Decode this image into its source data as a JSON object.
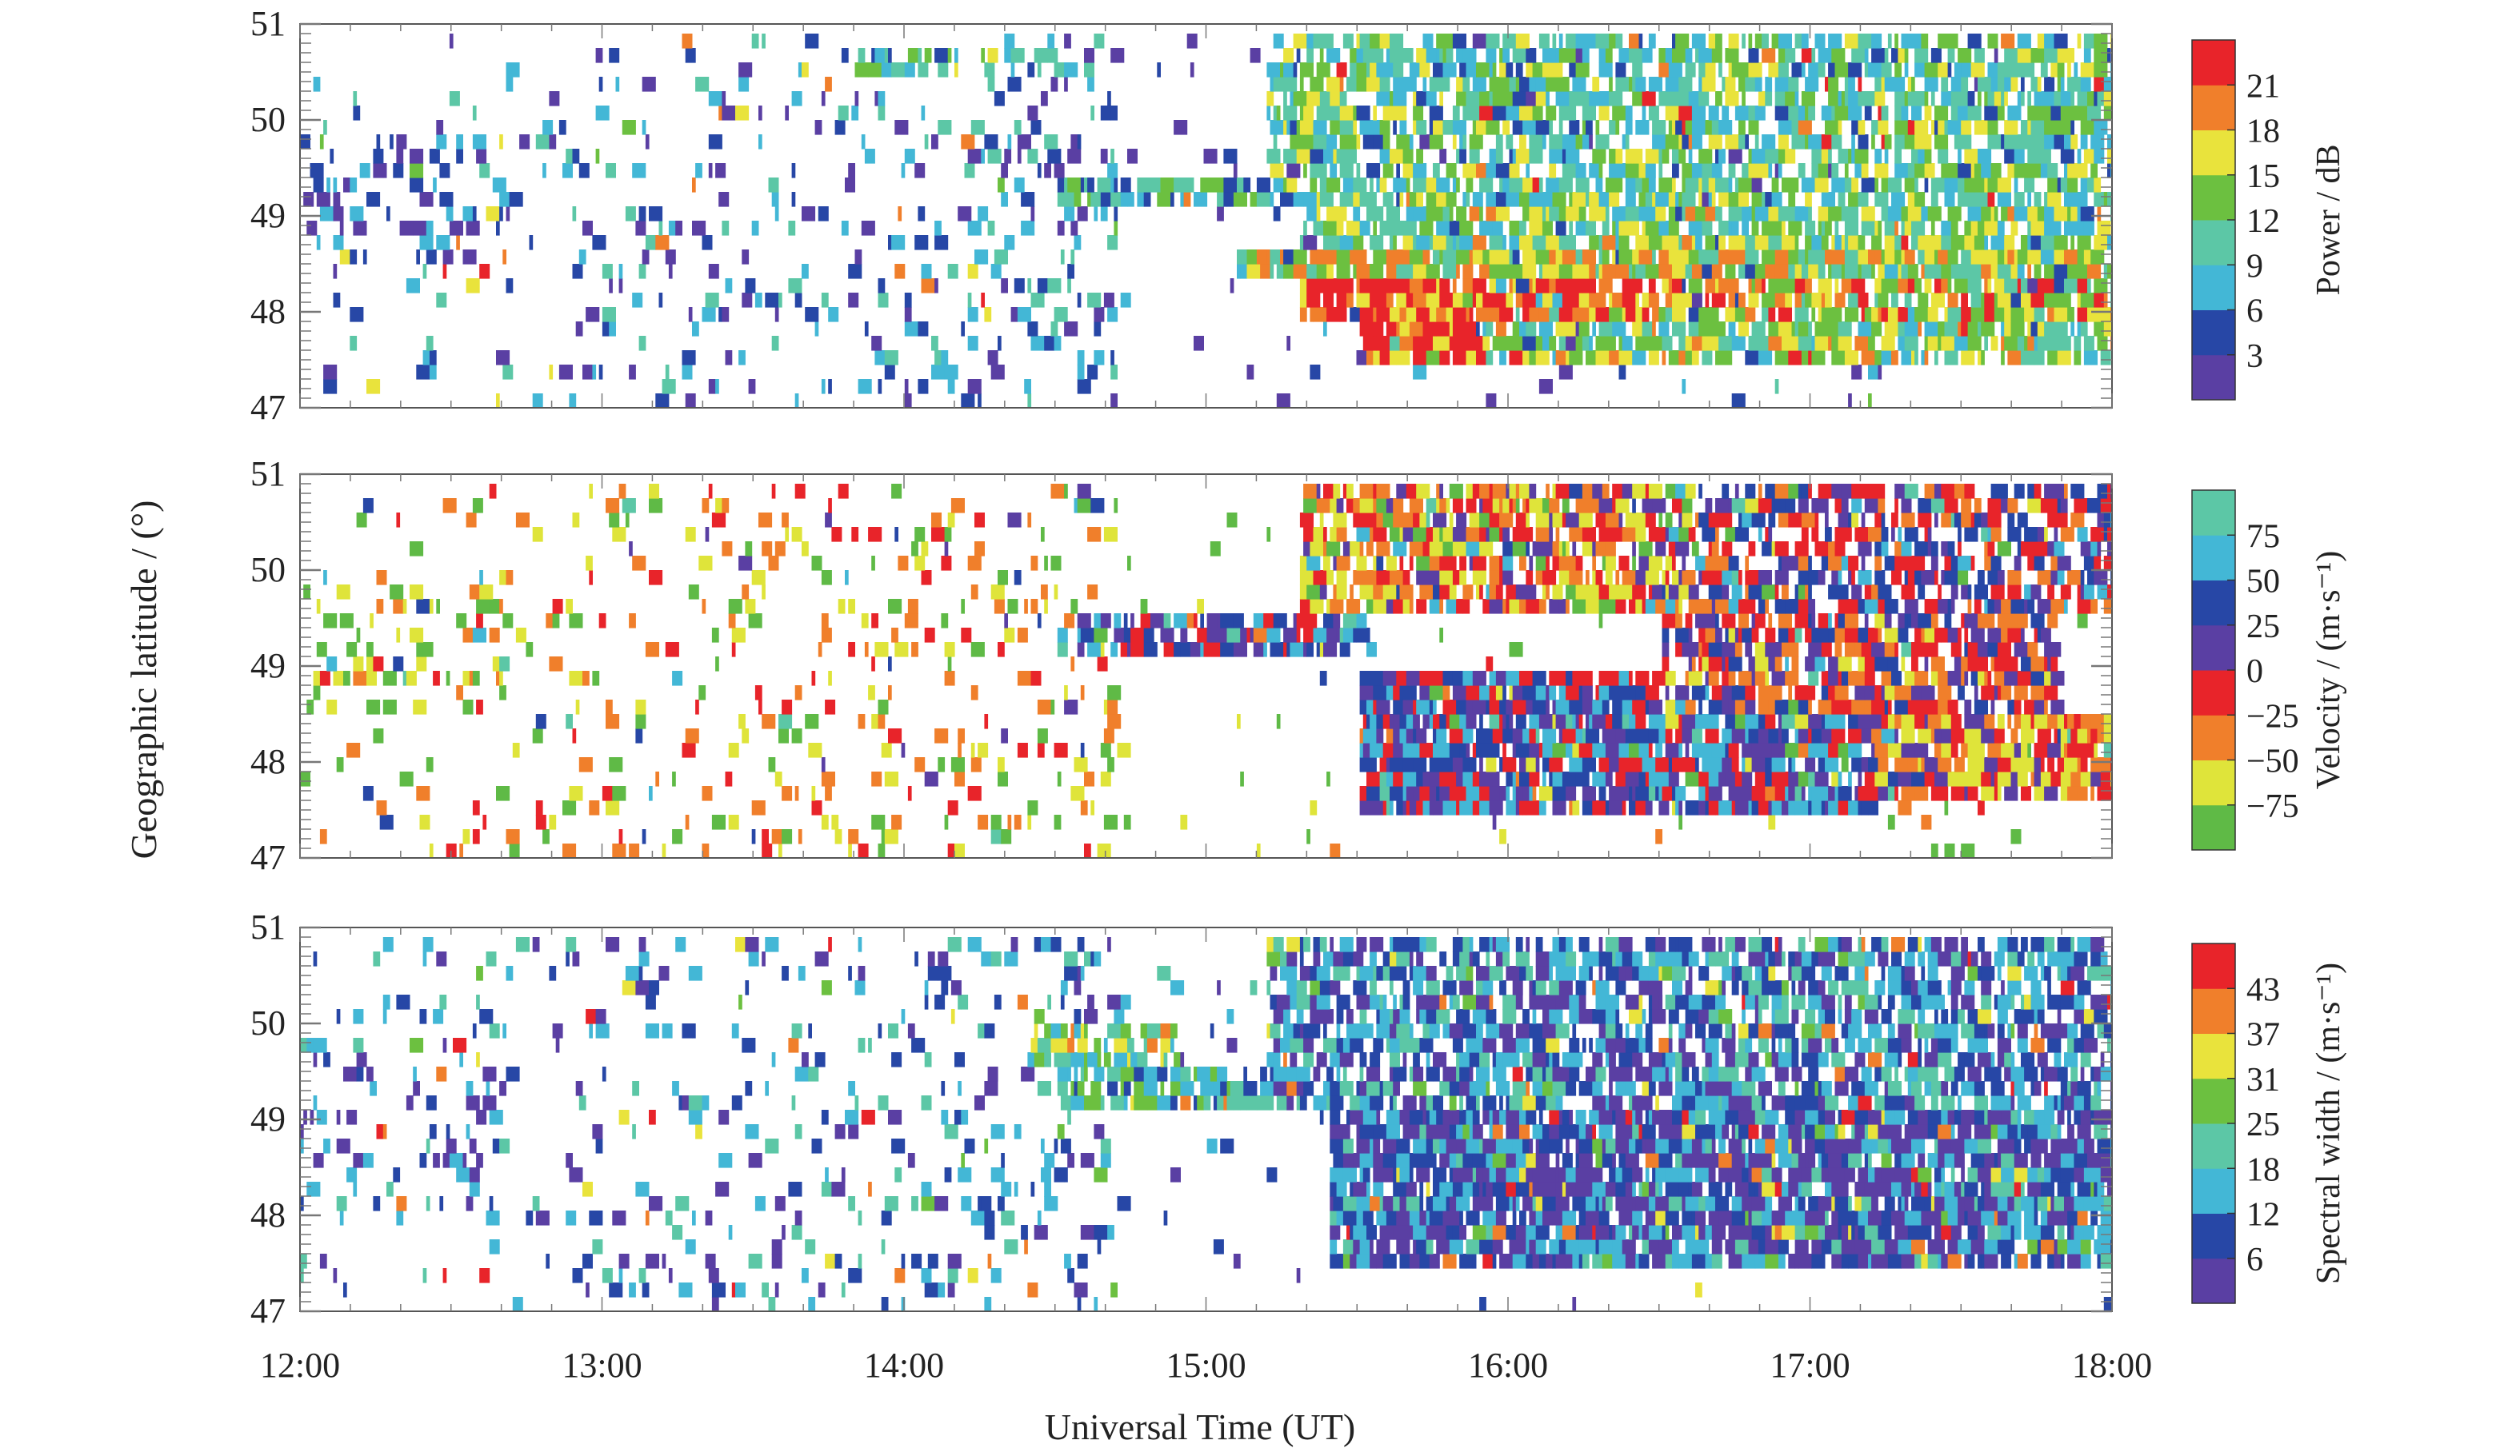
{
  "chart_data": [
    {
      "type": "heatmap",
      "panel": "power",
      "ylim": [
        47,
        51
      ],
      "yticks": [
        "47",
        "48",
        "49",
        "50",
        "51"
      ],
      "colorbar": {
        "label": "Power / dB",
        "ticks": [
          "3",
          "6",
          "9",
          "12",
          "15",
          "18",
          "21"
        ],
        "colors": [
          "#5a3fa3",
          "#2747a6",
          "#43b7d6",
          "#5cc7a6",
          "#6cc040",
          "#e9e33c",
          "#f07f2b",
          "#e8242a"
        ]
      },
      "bands": [
        {
          "lat": [
            50.85,
            51.0
          ],
          "t": [
            13.3,
            14.7
          ],
          "v": 0.4,
          "d": 0.25
        },
        {
          "lat": [
            50.5,
            50.7
          ],
          "t": [
            13.8,
            14.5
          ],
          "v": 0.45,
          "d": 0.3
        },
        {
          "lat": [
            49.1,
            49.4
          ],
          "t": [
            14.5,
            15.5
          ],
          "v": 0.35,
          "d": 0.6
        },
        {
          "lat": [
            48.3,
            48.6
          ],
          "t": [
            15.1,
            18.0
          ],
          "v": 0.65,
          "d": 0.85
        },
        {
          "lat": [
            47.9,
            48.3
          ],
          "t": [
            15.3,
            16.4
          ],
          "v": 0.95,
          "d": 0.85
        },
        {
          "lat": [
            47.9,
            48.3
          ],
          "t": [
            16.4,
            18.0
          ],
          "v": 0.75,
          "d": 0.7
        },
        {
          "lat": [
            47.4,
            47.9
          ],
          "t": [
            15.5,
            15.9
          ],
          "v": 0.95,
          "d": 0.9
        },
        {
          "lat": [
            47.4,
            47.9
          ],
          "t": [
            15.9,
            18.0
          ],
          "v": 0.55,
          "d": 0.7
        },
        {
          "lat": [
            48.6,
            49.2
          ],
          "t": [
            15.3,
            18.0
          ],
          "v": 0.5,
          "d": 0.65
        },
        {
          "lat": [
            49.2,
            51.0
          ],
          "t": [
            15.2,
            18.0
          ],
          "v": 0.45,
          "d": 0.55
        }
      ]
    },
    {
      "type": "heatmap",
      "panel": "velocity",
      "ylim": [
        47,
        51
      ],
      "yticks": [
        "47",
        "48",
        "49",
        "50",
        "51"
      ],
      "colorbar": {
        "label": "Velocity / (m·s⁻¹)",
        "ticks": [
          "−75",
          "−50",
          "−25",
          "0",
          "25",
          "50",
          "75"
        ],
        "colors": [
          "#5fba46",
          "#dfe43a",
          "#f07f2b",
          "#e8242a",
          "#5a3fa3",
          "#2747a6",
          "#43b7d6",
          "#5cc7a6"
        ]
      },
      "bands": [
        {
          "lat": [
            50.85,
            51.0
          ],
          "t": [
            13.3,
            14.7
          ],
          "v": 0.75,
          "d": 0.25
        },
        {
          "lat": [
            49.1,
            49.6
          ],
          "t": [
            14.5,
            15.5
          ],
          "v": 0.7,
          "d": 0.6
        },
        {
          "lat": [
            49.6,
            51.0
          ],
          "t": [
            15.3,
            16.6
          ],
          "v": 0.3,
          "d": 0.65
        },
        {
          "lat": [
            47.4,
            49.0
          ],
          "t": [
            15.5,
            17.2
          ],
          "v": 0.65,
          "d": 0.8
        },
        {
          "lat": [
            47.6,
            48.5
          ],
          "t": [
            17.2,
            18.0
          ],
          "v": 0.35,
          "d": 0.8
        },
        {
          "lat": [
            48.5,
            49.5
          ],
          "t": [
            16.5,
            17.8
          ],
          "v": 0.45,
          "d": 0.65
        },
        {
          "lat": [
            49.5,
            51.0
          ],
          "t": [
            16.6,
            18.0
          ],
          "v": 0.55,
          "d": 0.5
        }
      ]
    },
    {
      "type": "heatmap",
      "panel": "spectral_width",
      "ylim": [
        47,
        51
      ],
      "yticks": [
        "47",
        "48",
        "49",
        "50",
        "51"
      ],
      "colorbar": {
        "label": "Spectral width / (m·s⁻¹)",
        "ticks": [
          "6",
          "12",
          "18",
          "25",
          "31",
          "37",
          "43"
        ],
        "colors": [
          "#5a3fa3",
          "#2747a6",
          "#43b7d6",
          "#5cc7a6",
          "#6cc040",
          "#e9e33c",
          "#f07f2b",
          "#e8242a"
        ]
      },
      "bands": [
        {
          "lat": [
            50.85,
            51.0
          ],
          "t": [
            13.3,
            14.7
          ],
          "v": 0.12,
          "d": 0.25
        },
        {
          "lat": [
            49.1,
            49.5
          ],
          "t": [
            14.5,
            15.5
          ],
          "v": 0.35,
          "d": 0.6
        },
        {
          "lat": [
            49.5,
            50.0
          ],
          "t": [
            14.4,
            14.9
          ],
          "v": 0.55,
          "d": 0.5
        },
        {
          "lat": [
            47.4,
            49.1
          ],
          "t": [
            15.4,
            18.0
          ],
          "v": 0.12,
          "d": 0.8
        },
        {
          "lat": [
            49.1,
            51.0
          ],
          "t": [
            15.2,
            18.0
          ],
          "v": 0.2,
          "d": 0.55
        }
      ]
    }
  ],
  "axes": {
    "xticks": [
      "12:00",
      "13:00",
      "14:00",
      "15:00",
      "16:00",
      "17:00",
      "18:00"
    ],
    "xlabel": "Universal Time (UT)",
    "ylabel": "Geographic latitude / (°)"
  }
}
